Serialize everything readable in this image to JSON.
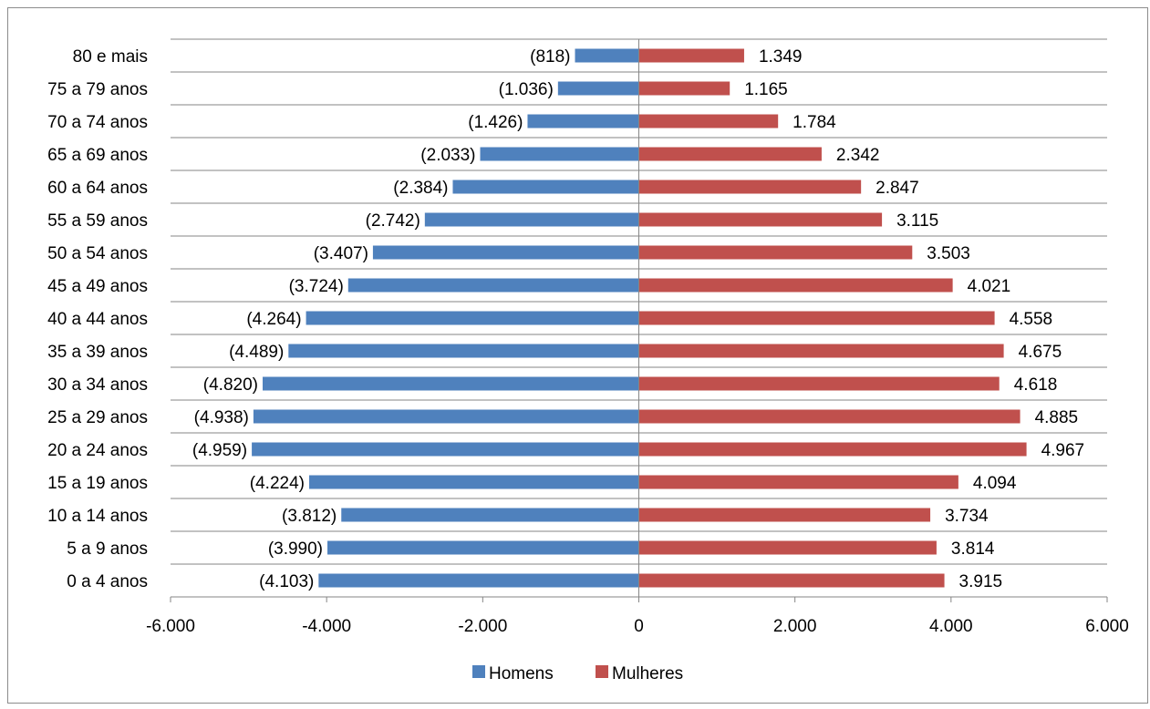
{
  "chart_data": {
    "type": "bar",
    "orientation": "horizontal",
    "title": "",
    "xlabel": "",
    "ylabel": "",
    "categories": [
      "0 a 4 anos",
      "5 a 9 anos",
      "10 a 14 anos",
      "15 a 19 anos",
      "20 a 24 anos",
      "25 a 29 anos",
      "30 a 34 anos",
      "35 a 39 anos",
      "40 a 44 anos",
      "45 a 49 anos",
      "50 a 54 anos",
      "55 a 59 anos",
      "60 a 64 anos",
      "65 a 69 anos",
      "70 a 74 anos",
      "75 a 79 anos",
      "80 e mais"
    ],
    "series": [
      {
        "name": "Homens",
        "color": "#4f81bd",
        "values": [
          -4103,
          -3990,
          -3812,
          -4224,
          -4959,
          -4938,
          -4820,
          -4489,
          -4264,
          -3724,
          -3407,
          -2742,
          -2384,
          -2033,
          -1426,
          -1036,
          -818
        ],
        "labels": [
          "(4.103)",
          "(3.990)",
          "(3.812)",
          "(4.224)",
          "(4.959)",
          "(4.938)",
          "(4.820)",
          "(4.489)",
          "(4.264)",
          "(3.724)",
          "(3.407)",
          "(2.742)",
          "(2.384)",
          "(2.033)",
          "(1.426)",
          "(1.036)",
          "(818)"
        ]
      },
      {
        "name": "Mulheres",
        "color": "#c0504d",
        "values": [
          3915,
          3814,
          3734,
          4094,
          4967,
          4885,
          4618,
          4675,
          4558,
          4021,
          3503,
          3115,
          2847,
          2342,
          1784,
          1165,
          1349
        ],
        "labels": [
          "3.915",
          "3.814",
          "3.734",
          "4.094",
          "4.967",
          "4.885",
          "4.618",
          "4.675",
          "4.558",
          "4.021",
          "3.503",
          "3.115",
          "2.847",
          "2.342",
          "1.784",
          "1.165",
          "1.349"
        ]
      }
    ],
    "xlim": [
      -6000,
      6000
    ],
    "xticks": [
      -6000,
      -4000,
      -2000,
      0,
      2000,
      4000,
      6000
    ],
    "xtick_labels": [
      "-6.000",
      "-4.000",
      "-2.000",
      "0",
      "2.000",
      "4.000",
      "6.000"
    ],
    "grid": true,
    "legend_position": "bottom"
  }
}
